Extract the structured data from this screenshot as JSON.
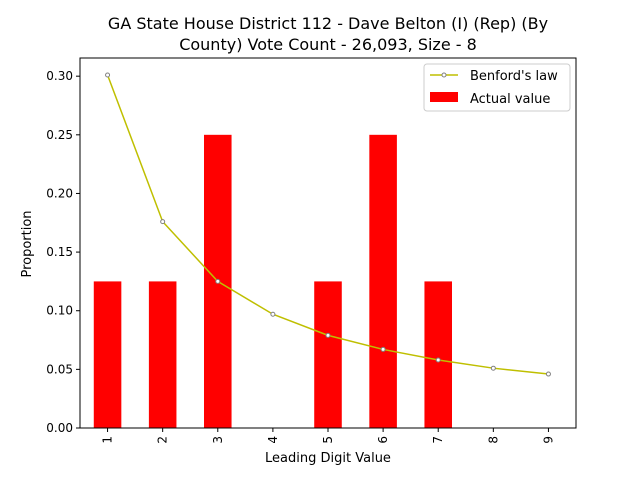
{
  "chart_data": {
    "type": "bar",
    "title_lines": [
      "GA State House District 112 - Dave Belton (I) (Rep) (By",
      "County) Vote Count - 26,093, Size - 8"
    ],
    "xlabel": "Leading Digit Value",
    "ylabel": "Proportion",
    "categories": [
      "1",
      "2",
      "3",
      "4",
      "5",
      "6",
      "7",
      "8",
      "9"
    ],
    "ylim": [
      0,
      0.3155
    ],
    "yticks": [
      "0.00",
      "0.05",
      "0.10",
      "0.15",
      "0.20",
      "0.25",
      "0.30"
    ],
    "series": [
      {
        "name": "Benford's law",
        "type": "line",
        "color": "#bfbf00",
        "marker_color": "#808080",
        "values": [
          0.301,
          0.176,
          0.125,
          0.097,
          0.079,
          0.067,
          0.058,
          0.051,
          0.046
        ]
      },
      {
        "name": "Actual value",
        "type": "bar",
        "color": "#ff0000",
        "values": [
          0.125,
          0.125,
          0.25,
          0,
          0.125,
          0.25,
          0.125,
          0,
          0
        ]
      }
    ],
    "legend_position": "top-right",
    "grid": false
  }
}
